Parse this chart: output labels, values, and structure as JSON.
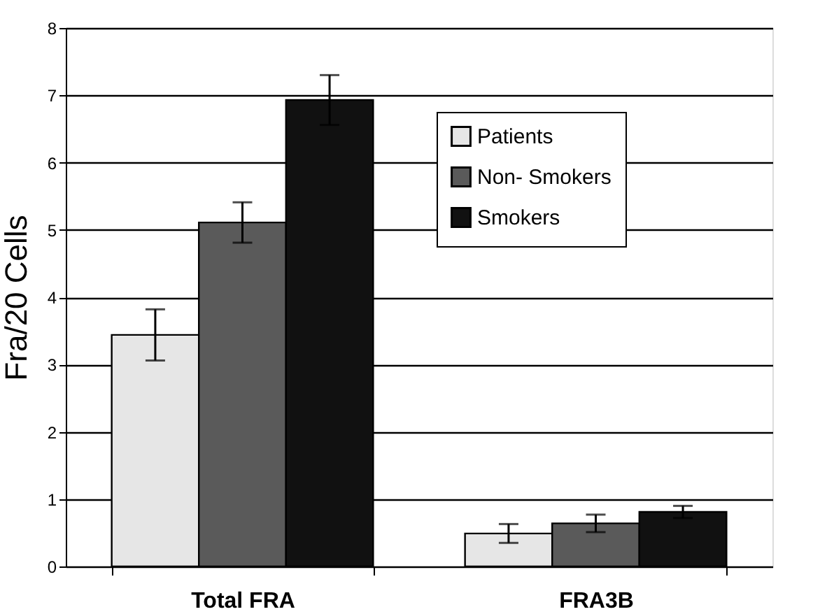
{
  "chart_data": {
    "type": "bar",
    "categories": [
      "Total FRA",
      "FRA3B"
    ],
    "ylabel": "Fra/20 Cells",
    "series": [
      {
        "name": "Patients",
        "color": "#e6e6e6",
        "values": [
          3.44,
          0.49
        ],
        "errors": [
          0.38,
          0.14
        ]
      },
      {
        "name": "Non- Smokers",
        "color": "#5a5a5a",
        "values": [
          5.11,
          0.64
        ],
        "errors": [
          0.3,
          0.13
        ]
      },
      {
        "name": "Smokers",
        "color": "#111111",
        "values": [
          6.93,
          0.81
        ],
        "errors": [
          0.37,
          0.09
        ]
      }
    ],
    "ylim": [
      0,
      8
    ],
    "yticks": [
      0,
      1,
      2,
      3,
      4,
      5,
      6,
      7,
      8
    ],
    "grid": "y",
    "legend": "top right"
  }
}
